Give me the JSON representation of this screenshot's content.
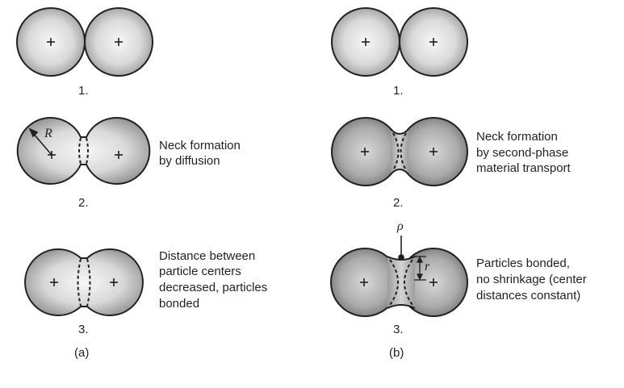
{
  "panel_a": {
    "label": "(a)",
    "stage1": {
      "number": "1."
    },
    "stage2": {
      "number": "2.",
      "caption": [
        "Neck formation",
        "by diffusion"
      ],
      "radius_symbol": "R"
    },
    "stage3": {
      "number": "3.",
      "caption": [
        "Distance between",
        "particle centers",
        "decreased, particles",
        "bonded"
      ]
    }
  },
  "panel_b": {
    "label": "(b)",
    "stage1": {
      "number": "1."
    },
    "stage2": {
      "number": "2.",
      "caption": [
        "Neck formation",
        "by second-phase",
        "material transport"
      ]
    },
    "stage3": {
      "number": "3.",
      "caption": [
        "Particles bonded,",
        "no shrinkage (center",
        "distances constant)"
      ],
      "rho_symbol": "ρ",
      "r_symbol": "r"
    }
  },
  "colors": {
    "sphere_light": "#f4f4f4",
    "sphere_mid": "#c8c8c8",
    "sphere_dark": "#8e8e8e",
    "outline": "#231f20"
  }
}
